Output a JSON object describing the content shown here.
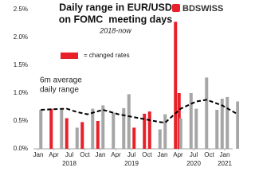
{
  "chart_data": {
    "type": "bar",
    "title_lines": [
      "Daily range in EUR/USD",
      "on FOMC  meeting days"
    ],
    "subtitle": "2018-now",
    "brand": "BDSWISS",
    "legend": {
      "label": "= changed rates",
      "color": "#e8202a"
    },
    "annotation_lines": [
      "6m average",
      "daily range"
    ],
    "x": [
      "2018-01",
      "2018-03",
      "2018-05",
      "2018-06",
      "2018-08",
      "2018-09",
      "2018-11",
      "2018-12",
      "2019-01",
      "2019-03",
      "2019-05",
      "2019-06",
      "2019-07",
      "2019-09",
      "2019-10",
      "2019-12",
      "2020-01",
      "2020-03",
      "2020-03",
      "2020-04",
      "2020-06",
      "2020-07",
      "2020-09",
      "2020-11",
      "2020-12",
      "2021-01",
      "2021-03"
    ],
    "values": [
      0.7,
      0.72,
      0.7,
      0.55,
      0.38,
      0.48,
      0.72,
      0.5,
      0.78,
      0.65,
      0.73,
      0.98,
      0.38,
      0.63,
      0.67,
      0.35,
      0.62,
      2.28,
      1.0,
      0.55,
      1.0,
      0.72,
      1.28,
      0.7,
      0.9,
      0.93,
      0.85
    ],
    "colors": [
      "#a6a6a6",
      "#e8202a",
      "#a6a6a6",
      "#e8202a",
      "#a6a6a6",
      "#e8202a",
      "#a6a6a6",
      "#e8202a",
      "#a6a6a6",
      "#a6a6a6",
      "#a6a6a6",
      "#a6a6a6",
      "#e8202a",
      "#e8202a",
      "#e8202a",
      "#a6a6a6",
      "#a6a6a6",
      "#e8202a",
      "#e8202a",
      "#a6a6a6",
      "#a6a6a6",
      "#a6a6a6",
      "#a6a6a6",
      "#a6a6a6",
      "#a6a6a6",
      "#a6a6a6",
      "#a6a6a6"
    ],
    "line": {
      "color": "#000000",
      "x": [
        "2018-01",
        "2018-03",
        "2018-06",
        "2018-08",
        "2018-10",
        "2019-01",
        "2019-04",
        "2019-08",
        "2019-12",
        "2020-01",
        "2020-04",
        "2020-07",
        "2020-09",
        "2020-12",
        "2021-03"
      ],
      "values": [
        0.7,
        0.71,
        0.72,
        0.66,
        0.62,
        0.7,
        0.62,
        0.55,
        0.48,
        0.47,
        0.72,
        0.85,
        0.88,
        0.78,
        0.62
      ]
    },
    "ylim": [
      0,
      2.5
    ],
    "yticks": [
      {
        "value": 0,
        "label": "0.0%"
      },
      {
        "value": 0.5,
        "label": "0.5%"
      },
      {
        "value": 1,
        "label": "1.0%"
      },
      {
        "value": 1.5,
        "label": "1.5%"
      },
      {
        "value": 2,
        "label": "2.0%"
      },
      {
        "value": 2.5,
        "label": "2.5%"
      }
    ],
    "xlim": [
      "2018-01",
      "2021-03"
    ],
    "xticks": [
      {
        "value": "2018-01",
        "label": "Jan"
      },
      {
        "value": "2018-04",
        "label": "Apr"
      },
      {
        "value": "2018-07",
        "label": "Jul"
      },
      {
        "value": "2018-10",
        "label": "Oct"
      },
      {
        "value": "2019-01",
        "label": "Jan"
      },
      {
        "value": "2019-04",
        "label": "Apr"
      },
      {
        "value": "2019-07",
        "label": "Jul"
      },
      {
        "value": "2019-10",
        "label": "Oct"
      },
      {
        "value": "2020-01",
        "label": "Jan"
      },
      {
        "value": "2020-04",
        "label": "Apr"
      },
      {
        "value": "2020-07",
        "label": "Jul"
      },
      {
        "value": "2020-10",
        "label": "Oct"
      },
      {
        "value": "2021-01",
        "label": "Jan"
      }
    ],
    "x_group_labels": [
      {
        "value": "2018-07",
        "label": "2018"
      },
      {
        "value": "2019-07",
        "label": "2019"
      },
      {
        "value": "2020-07",
        "label": "2020"
      },
      {
        "value": "2021-01",
        "label": "2021"
      }
    ]
  }
}
